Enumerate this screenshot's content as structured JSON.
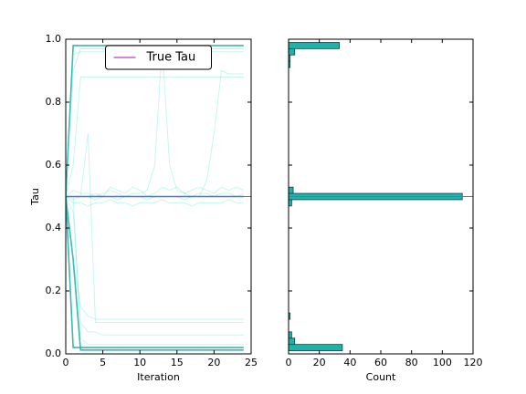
{
  "chart_data": [
    {
      "type": "line",
      "xlabel": "Iteration",
      "ylabel": "Tau",
      "x": [
        0,
        1,
        2,
        3,
        4,
        5,
        6,
        7,
        8,
        9,
        10,
        11,
        12,
        13,
        14,
        15,
        16,
        17,
        18,
        19,
        20,
        21,
        22,
        23,
        24
      ],
      "xlim": [
        0,
        25
      ],
      "xticks": [
        0,
        5,
        10,
        15,
        20,
        25
      ],
      "ylim": [
        0,
        1
      ],
      "yticks": [
        {
          "value": 0,
          "label": "0.0"
        },
        {
          "value": 0.2,
          "label": "0.2"
        },
        {
          "value": 0.4,
          "label": "0.4"
        },
        {
          "value": 0.6,
          "label": "0.6"
        },
        {
          "value": 0.8,
          "label": "0.8"
        },
        {
          "value": 1,
          "label": "1.0"
        }
      ],
      "legend": "upper center",
      "hlines": [
        {
          "name": "True Tau",
          "value": 0.5,
          "color": "#bf3fbf"
        }
      ],
      "series": [
        {
          "color": "#20b2aa",
          "alpha": 0.9,
          "width": 1.6,
          "values": [
            0.5,
            0.98,
            0.98,
            0.98,
            0.98,
            0.98,
            0.98,
            0.98,
            0.98,
            0.98,
            0.98,
            0.98,
            0.98,
            0.98,
            0.98,
            0.98,
            0.98,
            0.98,
            0.98,
            0.98,
            0.98,
            0.98,
            0.98,
            0.98,
            0.98
          ]
        },
        {
          "color": "#20b2aa",
          "alpha": 0.9,
          "width": 1.6,
          "values": [
            0.5,
            0.02,
            0.02,
            0.02,
            0.02,
            0.02,
            0.02,
            0.02,
            0.02,
            0.02,
            0.02,
            0.02,
            0.02,
            0.02,
            0.02,
            0.02,
            0.02,
            0.02,
            0.02,
            0.02,
            0.02,
            0.02,
            0.02,
            0.02,
            0.02
          ]
        },
        {
          "color": "#20b2aa",
          "alpha": 0.9,
          "width": 1.6,
          "values": [
            0.5,
            0.3,
            0.012,
            0.012,
            0.012,
            0.012,
            0.012,
            0.012,
            0.012,
            0.012,
            0.012,
            0.012,
            0.012,
            0.012,
            0.012,
            0.012,
            0.012,
            0.012,
            0.012,
            0.012,
            0.012,
            0.012,
            0.012,
            0.012,
            0.012
          ]
        },
        {
          "color": "#40e0d0",
          "alpha": 0.35,
          "width": 1,
          "values": [
            0.5,
            0.9,
            0.97,
            0.97,
            0.97,
            0.97,
            0.97,
            0.97,
            0.97,
            0.97,
            0.97,
            0.97,
            0.97,
            0.97,
            0.97,
            0.97,
            0.97,
            0.97,
            0.97,
            0.97,
            0.97,
            0.97,
            0.97,
            0.97,
            0.97
          ]
        },
        {
          "color": "#40e0d0",
          "alpha": 0.3,
          "width": 1,
          "values": [
            0.5,
            0.6,
            0.88,
            0.88,
            0.88,
            0.88,
            0.88,
            0.88,
            0.88,
            0.88,
            0.88,
            0.88,
            0.88,
            0.88,
            0.88,
            0.88,
            0.88,
            0.88,
            0.88,
            0.88,
            0.88,
            0.88,
            0.88,
            0.88,
            0.88
          ]
        },
        {
          "color": "#40e0d0",
          "alpha": 0.3,
          "width": 1,
          "values": [
            0.5,
            0.5,
            0.5,
            0.7,
            0.1,
            0.1,
            0.1,
            0.1,
            0.1,
            0.1,
            0.1,
            0.1,
            0.1,
            0.1,
            0.1,
            0.1,
            0.1,
            0.1,
            0.1,
            0.1,
            0.1,
            0.1,
            0.1,
            0.1,
            0.1
          ]
        },
        {
          "color": "#40e0d0",
          "alpha": 0.3,
          "width": 1,
          "values": [
            0.5,
            0.52,
            0.51,
            0.51,
            0.5,
            0.51,
            0.52,
            0.51,
            0.5,
            0.51,
            0.51,
            0.52,
            0.6,
            0.98,
            0.6,
            0.52,
            0.51,
            0.5,
            0.51,
            0.51,
            0.5,
            0.51,
            0.51,
            0.5,
            0.51
          ]
        },
        {
          "color": "#40e0d0",
          "alpha": 0.3,
          "width": 1,
          "values": [
            0.5,
            0.49,
            0.5,
            0.5,
            0.49,
            0.5,
            0.5,
            0.49,
            0.5,
            0.5,
            0.5,
            0.49,
            0.5,
            0.5,
            0.5,
            0.5,
            0.49,
            0.5,
            0.5,
            0.55,
            0.7,
            0.9,
            0.89,
            0.89,
            0.89
          ]
        },
        {
          "color": "#40e0d0",
          "alpha": 0.3,
          "width": 1,
          "values": [
            0.5,
            0.3,
            0.15,
            0.12,
            0.11,
            0.11,
            0.11,
            0.11,
            0.11,
            0.11,
            0.11,
            0.11,
            0.11,
            0.11,
            0.11,
            0.11,
            0.11,
            0.11,
            0.11,
            0.11,
            0.11,
            0.11,
            0.11,
            0.11,
            0.11
          ]
        },
        {
          "color": "#40e0d0",
          "alpha": 0.3,
          "width": 1,
          "values": [
            0.5,
            0.45,
            0.1,
            0.07,
            0.07,
            0.06,
            0.06,
            0.06,
            0.06,
            0.06,
            0.06,
            0.06,
            0.06,
            0.06,
            0.06,
            0.06,
            0.06,
            0.06,
            0.06,
            0.06,
            0.06,
            0.06,
            0.06,
            0.06,
            0.06
          ]
        },
        {
          "color": "#40e0d0",
          "alpha": 0.3,
          "width": 1,
          "values": [
            0.5,
            0.5,
            0.5,
            0.5,
            0.51,
            0.5,
            0.53,
            0.52,
            0.51,
            0.53,
            0.52,
            0.5,
            0.51,
            0.53,
            0.52,
            0.53,
            0.51,
            0.52,
            0.53,
            0.52,
            0.51,
            0.53,
            0.52,
            0.53,
            0.52
          ]
        },
        {
          "color": "#40e0d0",
          "alpha": 0.3,
          "width": 1,
          "values": [
            0.5,
            0.95,
            0.96,
            0.96,
            0.96,
            0.96,
            0.96,
            0.96,
            0.96,
            0.96,
            0.96,
            0.96,
            0.96,
            0.96,
            0.96,
            0.96,
            0.96,
            0.96,
            0.96,
            0.96,
            0.96,
            0.96,
            0.96,
            0.96,
            0.96
          ]
        },
        {
          "color": "#40e0d0",
          "alpha": 0.3,
          "width": 1,
          "values": [
            0.5,
            0.5,
            0.05,
            0.03,
            0.03,
            0.03,
            0.03,
            0.03,
            0.03,
            0.03,
            0.03,
            0.03,
            0.03,
            0.03,
            0.03,
            0.03,
            0.03,
            0.03,
            0.03,
            0.03,
            0.03,
            0.03,
            0.03,
            0.03,
            0.03
          ]
        },
        {
          "color": "#40e0d0",
          "alpha": 0.3,
          "width": 1,
          "values": [
            0.5,
            0.48,
            0.48,
            0.47,
            0.48,
            0.48,
            0.49,
            0.48,
            0.48,
            0.47,
            0.48,
            0.48,
            0.48,
            0.49,
            0.48,
            0.48,
            0.48,
            0.47,
            0.48,
            0.48,
            0.48,
            0.48,
            0.49,
            0.48,
            0.48
          ]
        },
        {
          "color": "#3a5fcd",
          "alpha": 0.9,
          "width": 1.6,
          "values": [
            0.5,
            0.5,
            0.5,
            0.5,
            0.5,
            0.5,
            0.5,
            0.5,
            0.5,
            0.5,
            0.5,
            0.5,
            0.5,
            0.5,
            0.5,
            0.5,
            0.5,
            0.5,
            0.5,
            0.5,
            0.5,
            0.5,
            0.5,
            0.5,
            0.5
          ]
        }
      ]
    },
    {
      "type": "hist",
      "orientation": "horizontal",
      "xlabel": "Count",
      "xlim": [
        0,
        120
      ],
      "xticks": [
        0,
        20,
        40,
        60,
        80,
        100,
        120
      ],
      "ylim": [
        0,
        1
      ],
      "yticks": [
        0,
        0.2,
        0.4,
        0.6,
        0.8,
        1
      ],
      "color": "#20b2aa",
      "hlines": [
        {
          "value": 0.5,
          "color": "#bf3fbf"
        }
      ],
      "bins": [
        -0.01,
        0.01,
        0.03,
        0.05,
        0.07,
        0.09,
        0.11,
        0.13,
        0.15,
        0.17,
        0.19,
        0.21,
        0.23,
        0.25,
        0.27,
        0.29,
        0.31,
        0.33,
        0.35,
        0.37,
        0.39,
        0.41,
        0.43,
        0.45,
        0.47,
        0.49,
        0.51,
        0.53,
        0.55,
        0.57,
        0.59,
        0.61,
        0.63,
        0.65,
        0.67,
        0.69,
        0.71,
        0.73,
        0.75,
        0.77,
        0.79,
        0.81,
        0.83,
        0.85,
        0.87,
        0.89,
        0.91,
        0.93,
        0.95,
        0.97,
        0.99,
        1.01
      ],
      "counts": [
        0,
        35,
        4,
        2,
        0,
        0,
        1,
        0,
        0,
        0,
        0,
        0,
        0,
        0,
        0,
        0,
        0,
        0,
        0,
        0,
        0,
        0,
        0,
        0,
        2,
        113,
        3,
        0,
        0,
        0,
        0,
        0,
        0,
        0,
        0,
        0,
        0,
        0,
        0,
        0,
        0,
        0,
        0,
        0,
        0,
        0,
        1,
        1,
        4,
        33,
        0
      ]
    }
  ]
}
